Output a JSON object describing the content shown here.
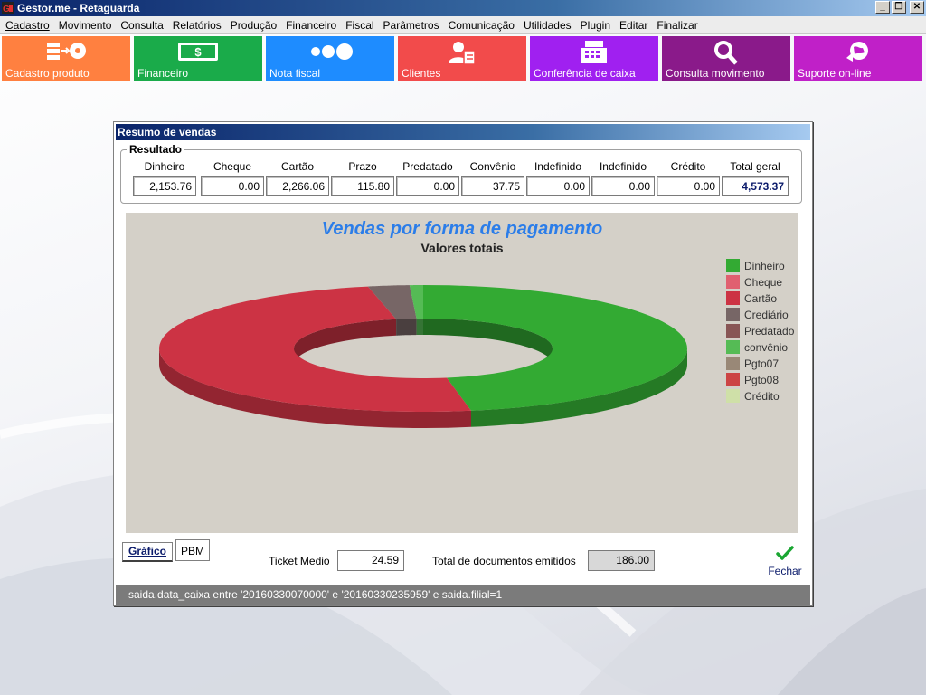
{
  "window": {
    "title": "Gestor.me - Retaguarda",
    "buttons": {
      "minimize": "_",
      "restore": "❐",
      "close": "✕"
    }
  },
  "menu": [
    {
      "label": "Cadastro"
    },
    {
      "label": "Movimento"
    },
    {
      "label": "Consulta"
    },
    {
      "label": "Relatórios"
    },
    {
      "label": "Produção"
    },
    {
      "label": "Financeiro"
    },
    {
      "label": "Fiscal"
    },
    {
      "label": "Parâmetros"
    },
    {
      "label": "Comunicação"
    },
    {
      "label": "Utilidades"
    },
    {
      "label": "Plugin"
    },
    {
      "label": "Editar"
    },
    {
      "label": "Finalizar"
    }
  ],
  "tiles": [
    {
      "label": "Cadastro produto",
      "color": "#ff8040",
      "icon": "product-register-icon"
    },
    {
      "label": "Financeiro",
      "color": "#1aab4a",
      "icon": "money-icon"
    },
    {
      "label": "Nota fiscal",
      "color": "#1e8cff",
      "icon": "dots-icon"
    },
    {
      "label": "Clientes",
      "color": "#f24b4b",
      "icon": "client-icon"
    },
    {
      "label": "Conferência de caixa",
      "color": "#a020f0",
      "icon": "cash-register-icon"
    },
    {
      "label": "Consulta movimento",
      "color": "#8a1a8a",
      "icon": "search-icon"
    },
    {
      "label": "Suporte on-line",
      "color": "#c020c8",
      "icon": "support-icon"
    }
  ],
  "dialog": {
    "title": "Resumo de vendas",
    "group_label": "Resultado",
    "fields": [
      {
        "label": "Dinheiro",
        "value": "2,153.76"
      },
      {
        "label": "Cheque",
        "value": "0.00"
      },
      {
        "label": "Cartão",
        "value": "2,266.06"
      },
      {
        "label": "Prazo",
        "value": "115.80"
      },
      {
        "label": "Predatado",
        "value": "0.00"
      },
      {
        "label": "Convênio",
        "value": "37.75"
      },
      {
        "label": "Indefinido",
        "value": "0.00"
      },
      {
        "label": "Indefinido",
        "value": "0.00"
      },
      {
        "label": "Crédito",
        "value": "0.00"
      },
      {
        "label": "Total geral",
        "value": "4,573.37"
      }
    ],
    "tabs": {
      "grafico": "Gráfico",
      "pbm": "PBM"
    },
    "ticket": {
      "label": "Ticket Medio",
      "value": "24.59"
    },
    "docs": {
      "label": "Total de documentos emitidos",
      "value": "186.00"
    },
    "close_label": "Fechar",
    "status": "saida.data_caixa entre '20160330070000' e '20160330235959' e saida.filial=1"
  },
  "chart_data": {
    "type": "pie",
    "title": "Vendas por forma de pagamento",
    "subtitle": "Valores totais",
    "legend_position": "right",
    "categories": [
      "Dinheiro",
      "Cheque",
      "Cartão",
      "Crediário",
      "Predatado",
      "convênio",
      "Pgto07",
      "Pgto08",
      "Crédito"
    ],
    "values": [
      2153.76,
      0.0,
      2266.06,
      115.8,
      0.0,
      37.75,
      0.0,
      0.0,
      0.0
    ],
    "colors": [
      "#33aa33",
      "#e06070",
      "#cc3344",
      "#776666",
      "#885555",
      "#55bb55",
      "#998877",
      "#cc4444",
      "#cfe0a8"
    ]
  }
}
